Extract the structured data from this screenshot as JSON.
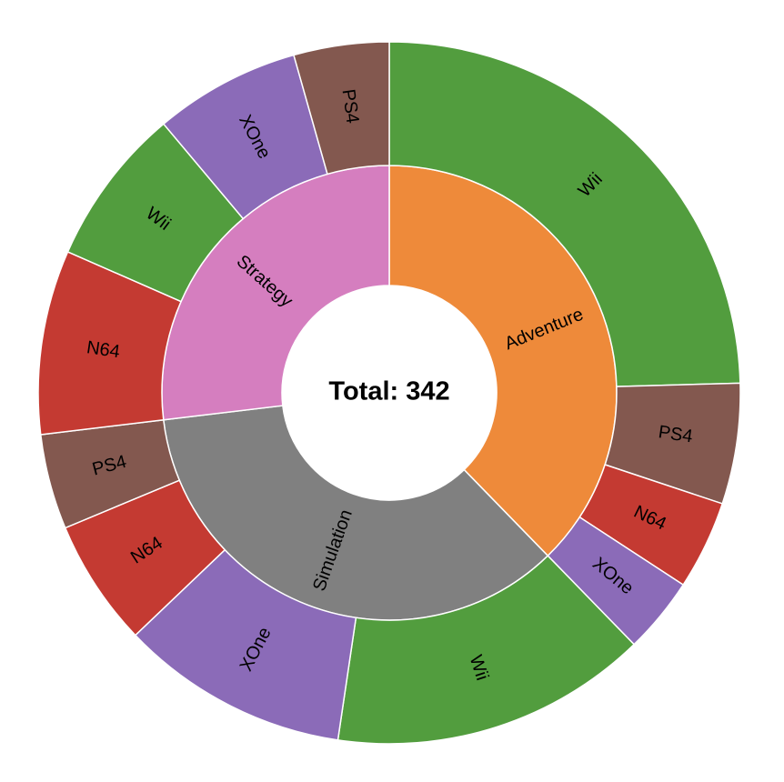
{
  "chart_data": {
    "type": "sunburst",
    "center_label": "Total: 342",
    "groups": [
      {
        "name": "Adventure",
        "color": "#ee8a3a",
        "value": 129,
        "children": [
          {
            "name": "Wii",
            "color": "#529d3e",
            "value": 84
          },
          {
            "name": "PS4",
            "color": "#83584f",
            "value": 19
          },
          {
            "name": "N64",
            "color": "#c43a32",
            "value": 14
          },
          {
            "name": "XOne",
            "color": "#8b6bb8",
            "value": 12
          }
        ]
      },
      {
        "name": "Simulation",
        "color": "#808080",
        "value": 121,
        "children": [
          {
            "name": "Wii",
            "color": "#529d3e",
            "value": 50
          },
          {
            "name": "XOne",
            "color": "#8b6bb8",
            "value": 36
          },
          {
            "name": "N64",
            "color": "#c43a32",
            "value": 20
          },
          {
            "name": "PS4",
            "color": "#83584f",
            "value": 15
          }
        ]
      },
      {
        "name": "Strategy",
        "color": "#d57ebf",
        "value": 92,
        "children": [
          {
            "name": "N64",
            "color": "#c43a32",
            "value": 29
          },
          {
            "name": "Wii",
            "color": "#529d3e",
            "value": 25
          },
          {
            "name": "XOne",
            "color": "#8b6bb8",
            "value": 23
          },
          {
            "name": "PS4",
            "color": "#83584f",
            "value": 15
          }
        ]
      }
    ]
  }
}
